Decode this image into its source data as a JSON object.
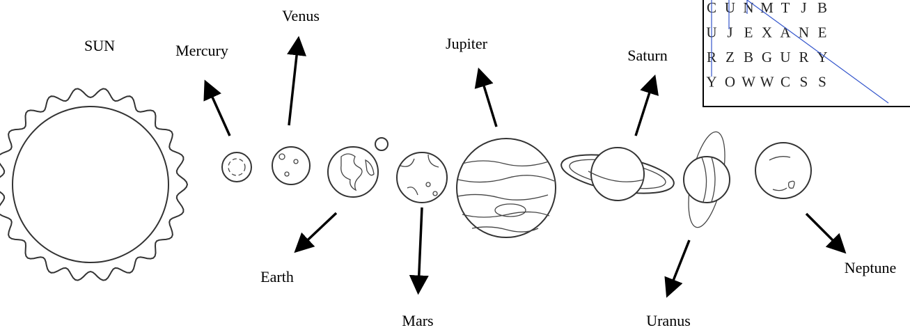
{
  "labels": {
    "sun": "SUN",
    "mercury": "Mercury",
    "venus": "Venus",
    "earth": "Earth",
    "mars": "Mars",
    "jupiter": "Jupiter",
    "saturn": "Saturn",
    "uranus": "Uranus",
    "neptune": "Neptune"
  },
  "word_search": {
    "rows": [
      [
        "C",
        "U",
        "N",
        "M",
        "T",
        "J",
        "B"
      ],
      [
        "U",
        "J",
        "E",
        "X",
        "A",
        "N",
        "E"
      ],
      [
        "R",
        "Z",
        "B",
        "G",
        "U",
        "R",
        "Y"
      ],
      [
        "Y",
        "O",
        "W",
        "W",
        "C",
        "S",
        "S"
      ]
    ]
  }
}
